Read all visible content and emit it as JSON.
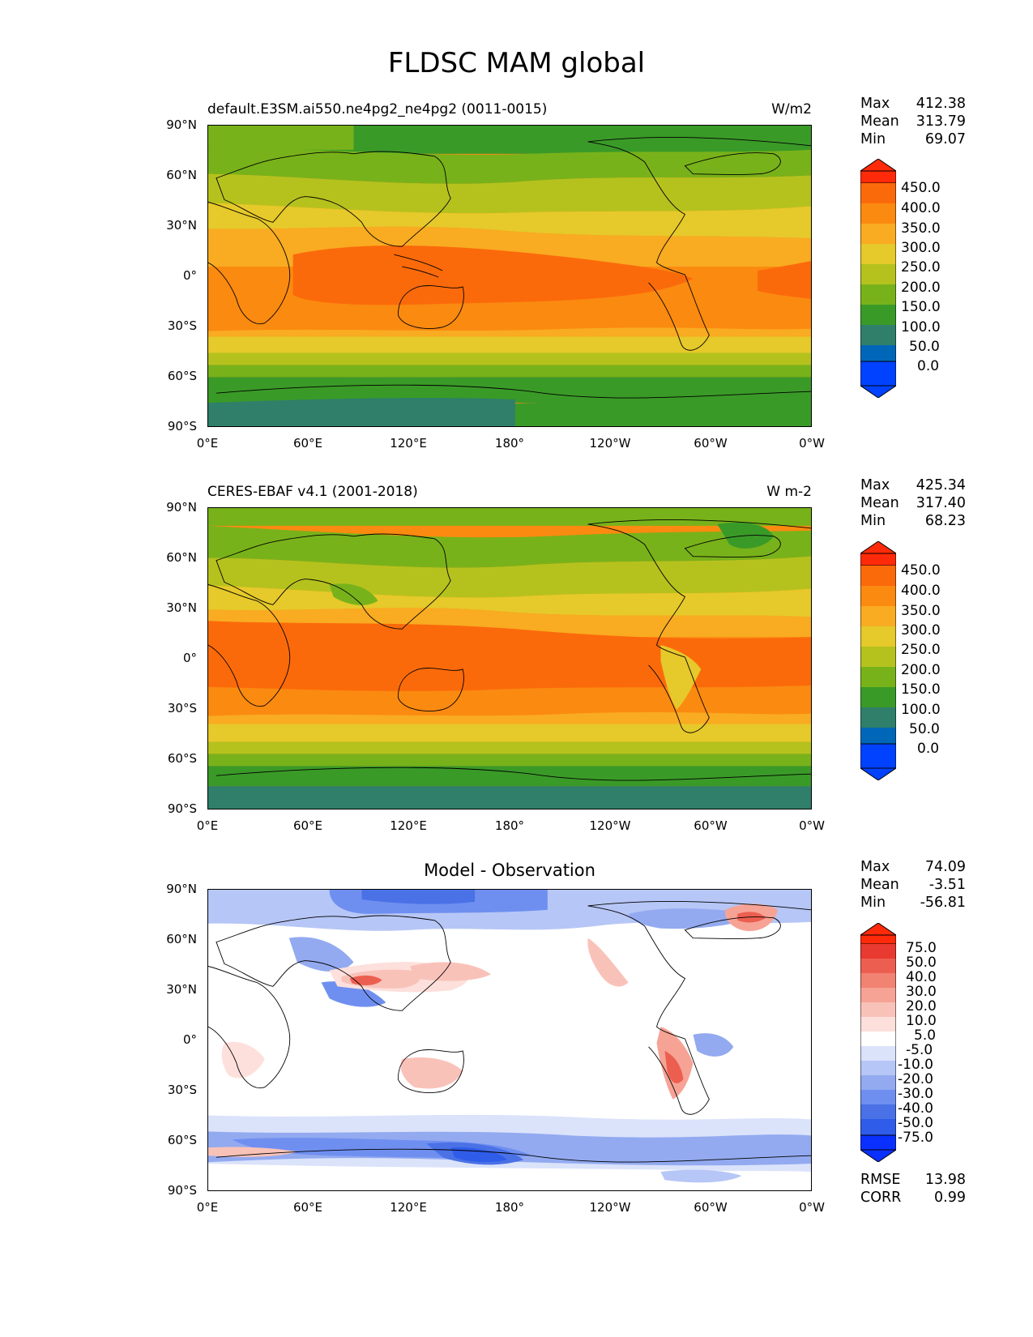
{
  "title": "FLDSC MAM global",
  "panels": [
    {
      "left_title": "default.E3SM.ai550.ne4pg2_ne4pg2 (0011-0015)",
      "units": "W/m2",
      "stats": {
        "max_label": "Max",
        "max": "412.38",
        "mean_label": "Mean",
        "mean": "313.79",
        "min_label": "Min",
        "min": "69.07"
      },
      "colorbar_labels": [
        "450.0",
        "400.0",
        "350.0",
        "300.0",
        "250.0",
        "200.0",
        "150.0",
        "100.0",
        "50.0",
        "0.0"
      ]
    },
    {
      "left_title": "CERES-EBAF v4.1 (2001-2018)",
      "units": "W m-2",
      "stats": {
        "max_label": "Max",
        "max": "425.34",
        "mean_label": "Mean",
        "mean": "317.40",
        "min_label": "Min",
        "min": "68.23"
      },
      "colorbar_labels": [
        "450.0",
        "400.0",
        "350.0",
        "300.0",
        "250.0",
        "200.0",
        "150.0",
        "100.0",
        "50.0",
        "0.0"
      ]
    },
    {
      "center_title": "Model - Observation",
      "stats": {
        "max_label": "Max",
        "max": "74.09",
        "mean_label": "Mean",
        "mean": "-3.51",
        "min_label": "Min",
        "min": "-56.81"
      },
      "colorbar_labels": [
        "75.0",
        "50.0",
        "40.0",
        "30.0",
        "20.0",
        "10.0",
        "5.0",
        "-5.0",
        "-10.0",
        "-20.0",
        "-30.0",
        "-40.0",
        "-50.0",
        "-75.0"
      ],
      "rmse_label": "RMSE",
      "rmse": "13.98",
      "corr_label": "CORR",
      "corr": "0.99"
    }
  ],
  "lat_labels": [
    "90°N",
    "60°N",
    "30°N",
    "0°",
    "30°S",
    "60°S",
    "90°S"
  ],
  "lon_labels": [
    "0°E",
    "60°E",
    "120°E",
    "180°",
    "120°W",
    "60°W",
    "0°W"
  ],
  "colors": {
    "abs_scale": [
      "#0042ff",
      "#0067b8",
      "#2f7f6a",
      "#3a9a28",
      "#78b21a",
      "#b5c21e",
      "#e6c92a",
      "#f9ab22",
      "#fb8a10",
      "#fb6a0a",
      "#ff2a0a"
    ],
    "diff_scale": [
      "#0a30ff",
      "#2f5ce8",
      "#4a71e6",
      "#6f8ff0",
      "#93aaf0",
      "#b6c6f6",
      "#dbe3fb",
      "#ffffff",
      "#fde0dc",
      "#f9c2b9",
      "#f6a396",
      "#f18372",
      "#ec5f50",
      "#e83a30",
      "#ff2a0a"
    ]
  }
}
